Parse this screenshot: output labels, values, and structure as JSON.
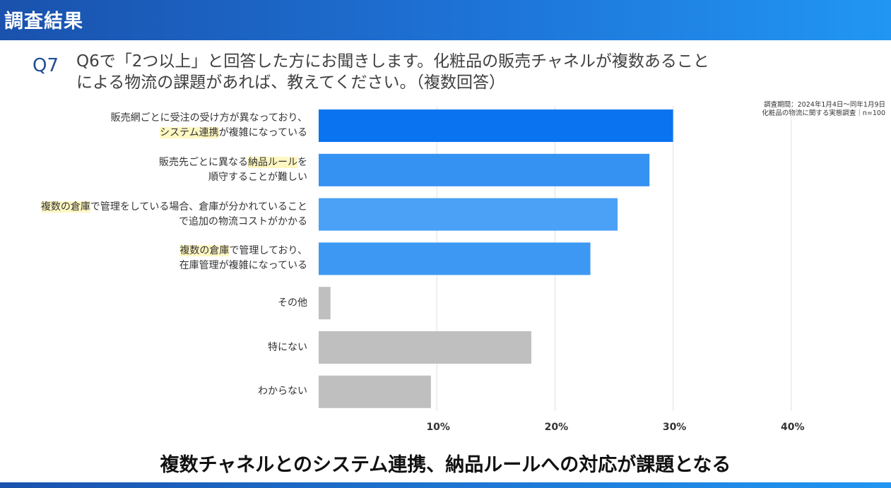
{
  "header": {
    "title": "調査結果"
  },
  "question": {
    "number": "Q7",
    "line1": "Q6で「2つ以上」と回答した方にお聞きします。化粧品の販売チャネルが複数あること",
    "line2": "による物流の課題があれば、教えてください。（複数回答）"
  },
  "note": {
    "line1": "調査期間：2024年1月4日～同年1月9日",
    "line2": "化粧品の物流に関する実態調査｜n=100"
  },
  "conclusion": "複数チャネルとのシステム連携、納品ルールへの対応が課題となる",
  "chart_data": {
    "type": "bar",
    "orientation": "horizontal",
    "unit": "%",
    "xlim": [
      0,
      40
    ],
    "ticks": [
      10,
      20,
      30,
      40
    ],
    "tick_labels": [
      "10%",
      "20%",
      "30%",
      "40%"
    ],
    "grid": true,
    "categories": [
      {
        "lines": [
          [
            {
              "t": "販売網ごとに受注の受け方が異なっており、",
              "hl": false
            }
          ],
          [
            {
              "t": "システム連携",
              "hl": true
            },
            {
              "t": "が複雑になっている",
              "hl": false
            }
          ]
        ]
      },
      {
        "lines": [
          [
            {
              "t": "販売先ごとに異なる",
              "hl": false
            },
            {
              "t": "納品ルール",
              "hl": true
            },
            {
              "t": "を",
              "hl": false
            }
          ],
          [
            {
              "t": "順守することが難しい",
              "hl": false
            }
          ]
        ]
      },
      {
        "lines": [
          [
            {
              "t": "複数の倉庫",
              "hl": true
            },
            {
              "t": "で管理をしている場合、倉庫が分かれていること",
              "hl": false
            }
          ],
          [
            {
              "t": "で追加の物流コストがかかる",
              "hl": false
            }
          ]
        ]
      },
      {
        "lines": [
          [
            {
              "t": "複数の倉庫",
              "hl": true
            },
            {
              "t": "で管理しており、",
              "hl": false
            }
          ],
          [
            {
              "t": "在庫管理が複雑になっている",
              "hl": false
            }
          ]
        ]
      },
      {
        "lines": [
          [
            {
              "t": "その他",
              "hl": false
            }
          ]
        ]
      },
      {
        "lines": [
          [
            {
              "t": "特にない",
              "hl": false
            }
          ]
        ]
      },
      {
        "lines": [
          [
            {
              "t": "わからない",
              "hl": false
            }
          ]
        ]
      }
    ],
    "values": [
      30,
      28,
      25.3,
      23,
      1,
      18,
      9.5
    ],
    "colors": [
      "#0a74f0",
      "#3592f2",
      "#4aa1f6",
      "#3d98f4",
      "#bfbfbf",
      "#bfbfbf",
      "#bfbfbf"
    ],
    "highlight_color": "#fff7c2"
  }
}
